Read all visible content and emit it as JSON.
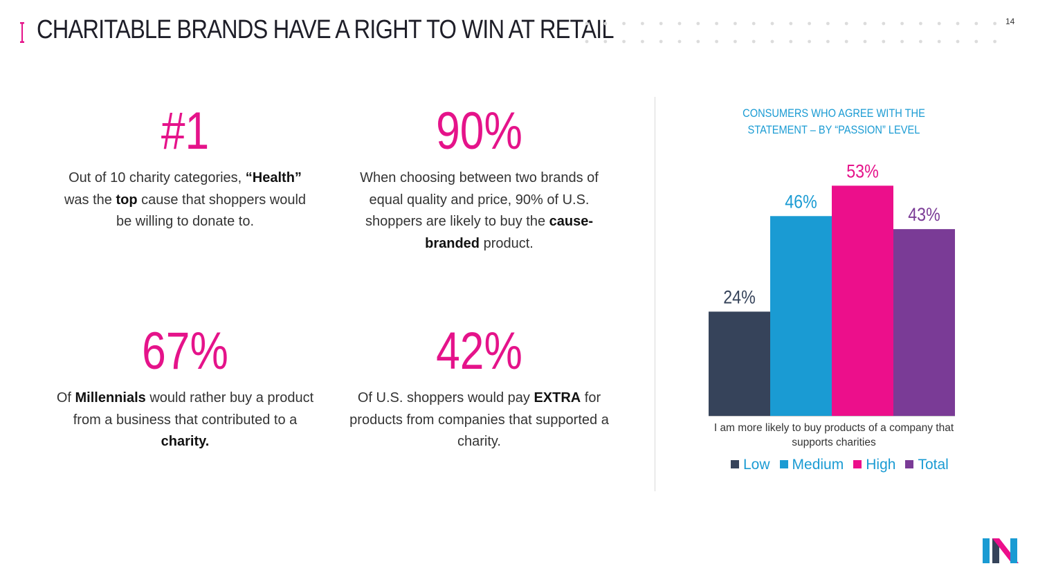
{
  "header": {
    "title": "CHARITABLE BRANDS HAVE A RIGHT TO WIN AT RETAIL",
    "page_number": "14"
  },
  "stats": [
    {
      "big": "#1",
      "parts": [
        [
          "Out of 10 charity categories, ",
          false
        ],
        [
          "“Health”",
          true
        ],
        [
          " was the ",
          false
        ],
        [
          "top",
          true
        ],
        [
          " cause that shoppers would be willing to donate to.",
          false
        ]
      ]
    },
    {
      "big": "90%",
      "parts": [
        [
          "When choosing between two brands of equal quality and price, 90% of U.S. shoppers are likely to buy the ",
          false
        ],
        [
          "cause-branded",
          true
        ],
        [
          " product.",
          false
        ]
      ]
    },
    {
      "big": "67%",
      "parts": [
        [
          "Of ",
          false
        ],
        [
          "Millennials",
          true
        ],
        [
          " would rather buy a product from a business that contributed to a ",
          false
        ],
        [
          "charity.",
          true
        ]
      ]
    },
    {
      "big": "42%",
      "parts": [
        [
          "Of U.S. shoppers would pay ",
          false
        ],
        [
          "EXTRA",
          true
        ],
        [
          " for products  from companies that supported a charity.",
          false
        ]
      ]
    }
  ],
  "chart_data": {
    "type": "bar",
    "title": "CONSUMERS WHO AGREE WITH THE STATEMENT – BY “PASSION” LEVEL",
    "categories": [
      "I am more likely to buy products of a company that supports charities"
    ],
    "series": [
      {
        "name": "Low",
        "values": [
          24
        ],
        "label": "24%",
        "color": "#36435a",
        "label_color": "#36435a"
      },
      {
        "name": "Medium",
        "values": [
          46
        ],
        "label": "46%",
        "color": "#1a9bd3",
        "label_color": "#1a9bd3"
      },
      {
        "name": "High",
        "values": [
          53
        ],
        "label": "53%",
        "color": "#ec0f8b",
        "label_color": "#e5138a"
      },
      {
        "name": "Total",
        "values": [
          43
        ],
        "label": "43%",
        "color": "#7a3b96",
        "label_color": "#7a3b96"
      }
    ],
    "ylim": [
      0,
      60
    ],
    "legend_position": "bottom",
    "grid": false
  },
  "colors": {
    "accent": "#e5138a",
    "blue": "#1a9bd3"
  }
}
